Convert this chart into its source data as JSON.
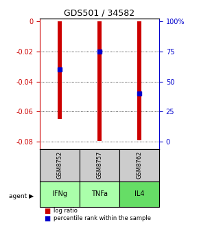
{
  "title": "GDS501 / 34582",
  "samples": [
    "GSM8752",
    "GSM8757",
    "GSM8762"
  ],
  "agents": [
    "IFNg",
    "TNFa",
    "IL4"
  ],
  "log_ratios": [
    -0.065,
    -0.0795,
    -0.079
  ],
  "percentile_ranks": [
    60,
    75,
    40
  ],
  "ylim_left": [
    -0.085,
    0.002
  ],
  "yticks_left": [
    0,
    -0.02,
    -0.04,
    -0.06,
    -0.08
  ],
  "yticks_right": [
    0,
    25,
    50,
    75,
    100
  ],
  "bar_color": "#cc0000",
  "dot_color": "#0000cc",
  "agent_colors": [
    "#aaffaa",
    "#aaffaa",
    "#66dd66"
  ],
  "sample_box_color": "#cccccc",
  "left_axis_color": "#cc0000",
  "right_axis_color": "#0000cc",
  "bar_width": 0.12
}
